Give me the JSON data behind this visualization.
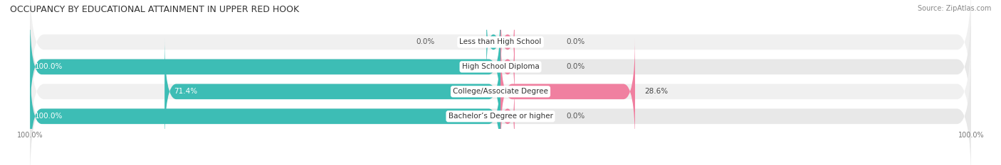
{
  "title": "OCCUPANCY BY EDUCATIONAL ATTAINMENT IN UPPER RED HOOK",
  "source": "Source: ZipAtlas.com",
  "categories": [
    "Less than High School",
    "High School Diploma",
    "College/Associate Degree",
    "Bachelor’s Degree or higher"
  ],
  "owner_pct": [
    0.0,
    100.0,
    71.4,
    100.0
  ],
  "renter_pct": [
    0.0,
    0.0,
    28.6,
    0.0
  ],
  "owner_color": "#3dbdb5",
  "renter_color": "#f080a0",
  "row_bg_colors": [
    "#f0f0f0",
    "#e8e8e8",
    "#f0f0f0",
    "#e8e8e8"
  ],
  "bar_bg_color": "#e0e0e0",
  "bar_height": 0.62,
  "figsize": [
    14.06,
    2.33
  ],
  "dpi": 100,
  "title_fontsize": 9,
  "label_fontsize": 7.5,
  "value_fontsize": 7.5,
  "tick_fontsize": 7,
  "source_fontsize": 7,
  "legend_fontsize": 7.5,
  "xlim_left": -100,
  "xlim_right": 100,
  "owner_label_positions": [
    null,
    -100,
    -71.4,
    -100
  ],
  "renter_label_positions": [
    null,
    null,
    28.6,
    null
  ],
  "owner_values_near_center": [
    true,
    false,
    false,
    false
  ],
  "renter_values_near_center": [
    true,
    true,
    false,
    true
  ]
}
